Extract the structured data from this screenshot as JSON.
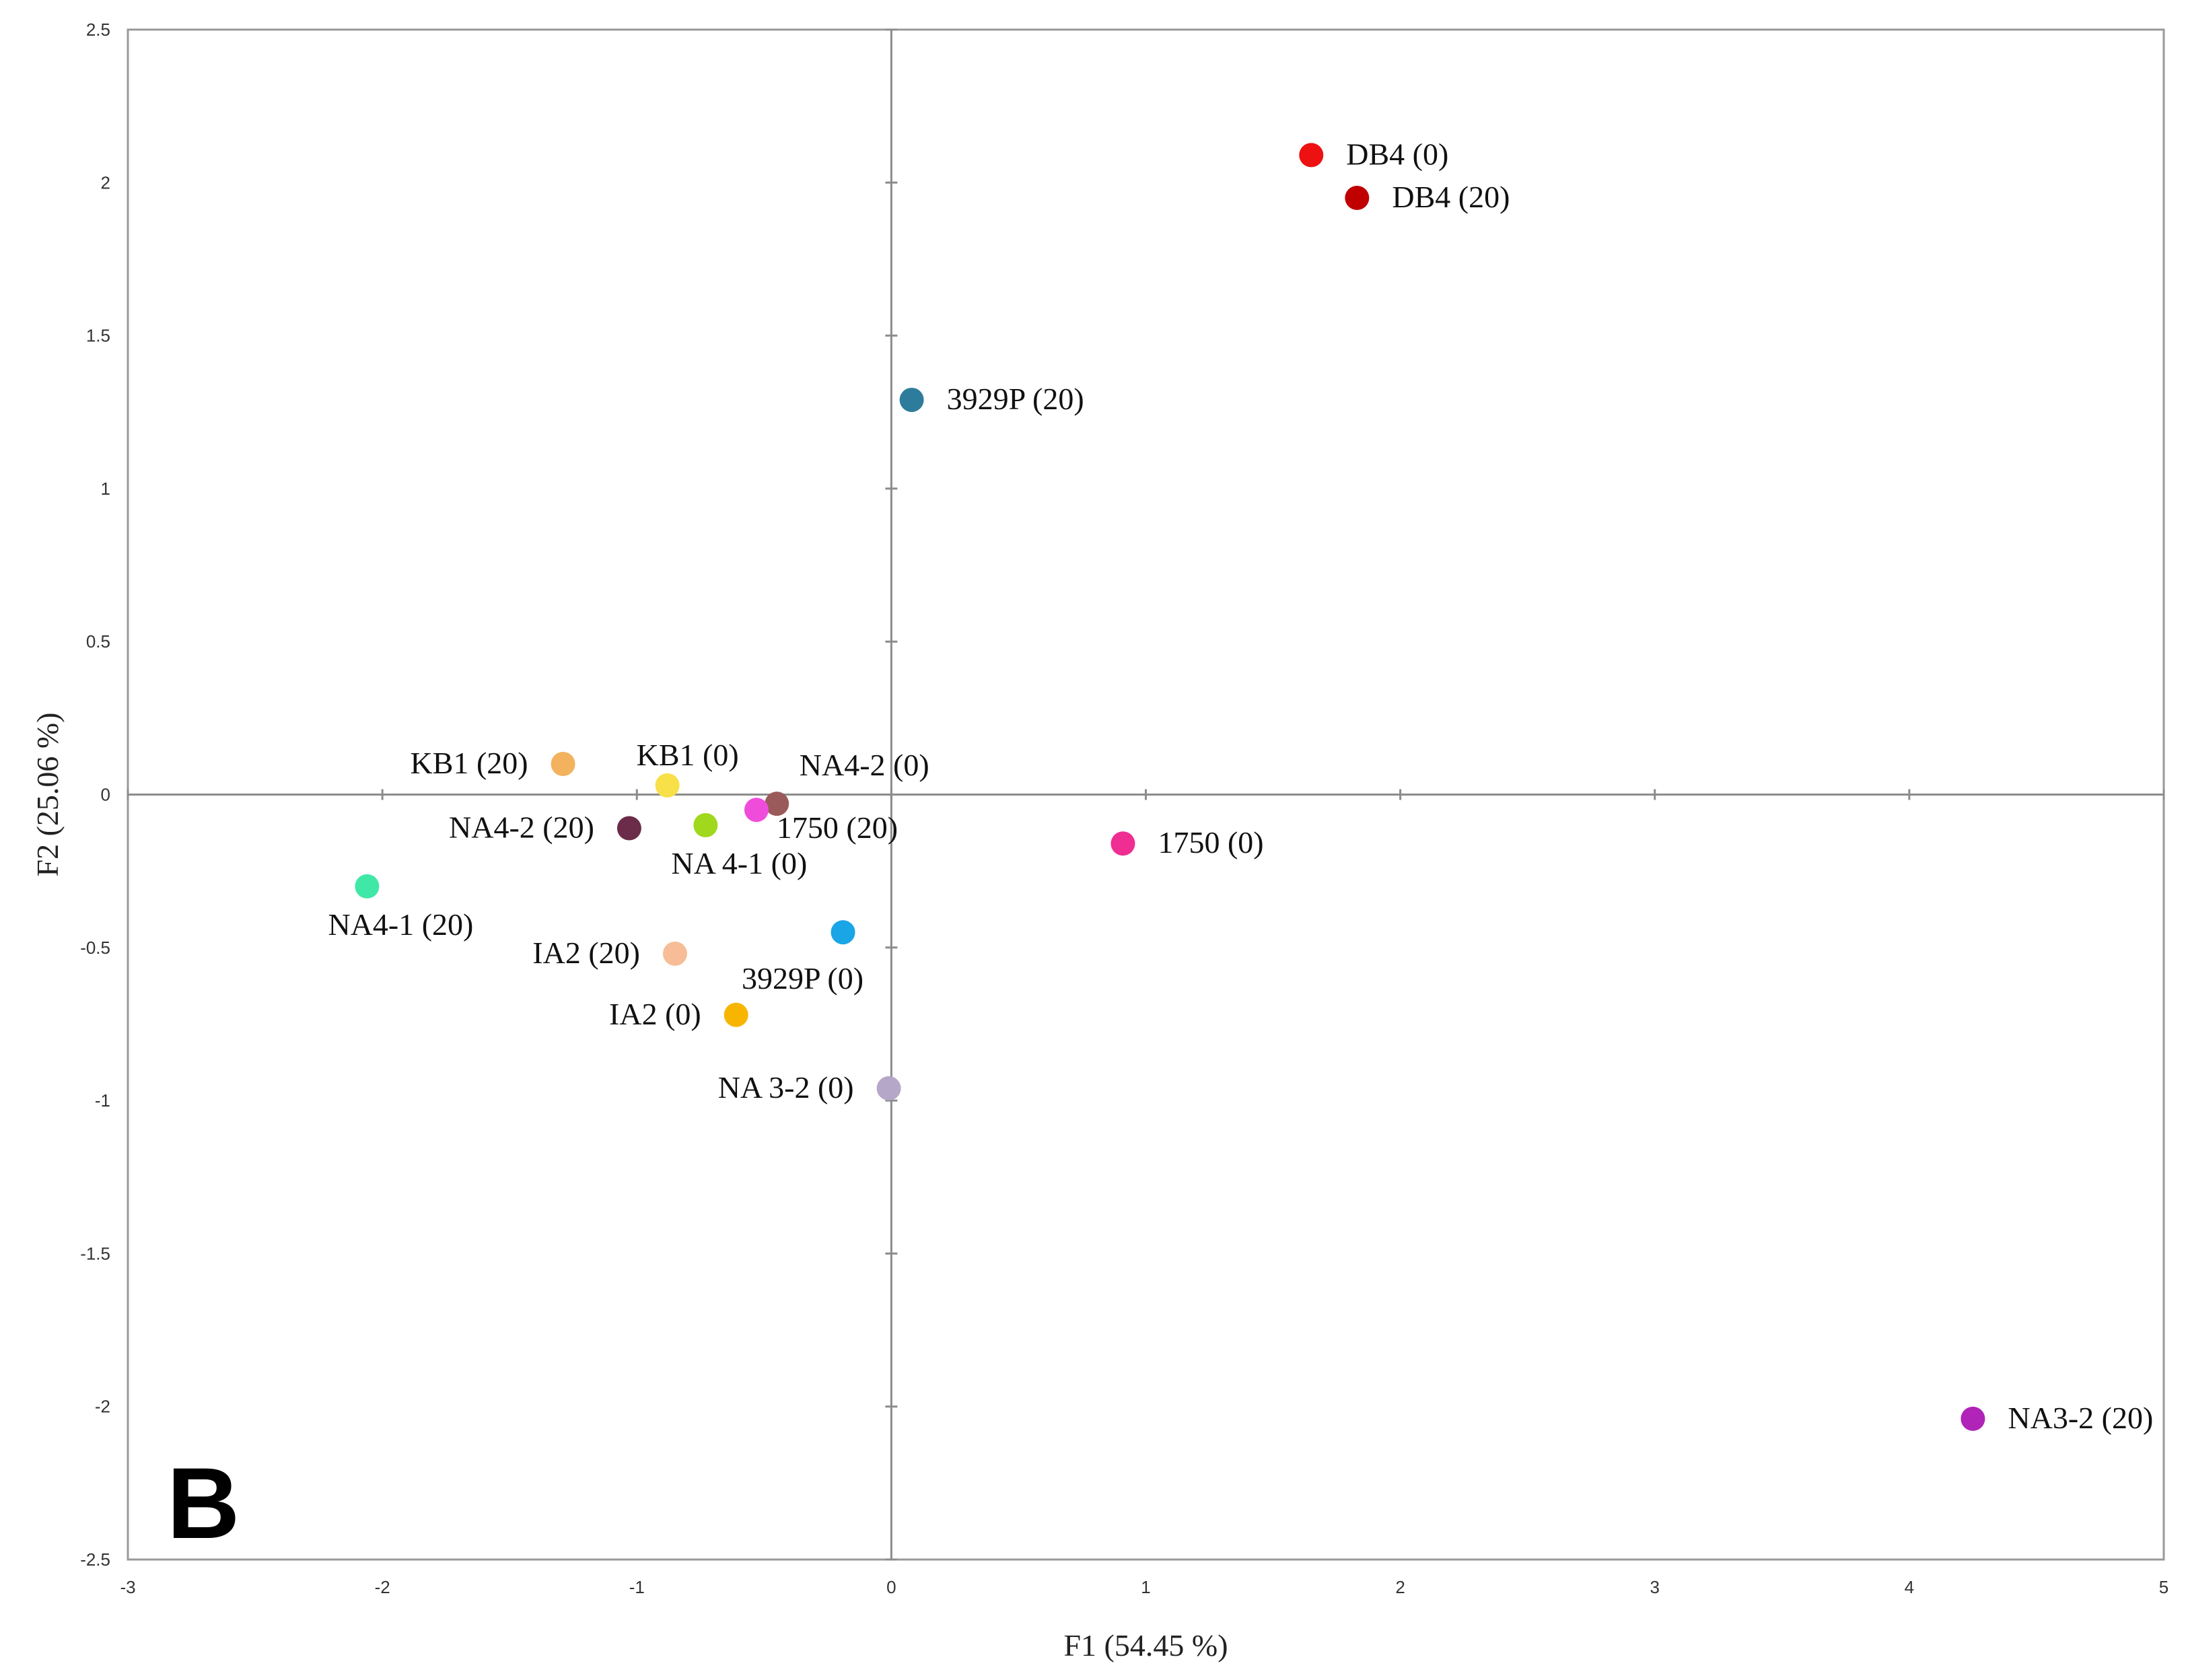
{
  "panel_label": "B",
  "chart_data": {
    "type": "scatter",
    "title": "",
    "xlabel": "F1 (54.45 %)",
    "ylabel": "F2 (25.06 %)",
    "xlim": [
      -3,
      5
    ],
    "ylim": [
      -2.5,
      2.5
    ],
    "xticks": [
      "-3",
      "-2",
      "-1",
      "0",
      "1",
      "2",
      "3",
      "4",
      "5"
    ],
    "yticks": [
      "2.5",
      "2",
      "1.5",
      "1",
      "0.5",
      "0",
      "-0.5",
      "-1",
      "-1.5",
      "-2",
      "-2.5"
    ],
    "grid": false,
    "legend": "none",
    "points": [
      {
        "label": "DB4 (0)",
        "x": 1.65,
        "y": 2.09,
        "color": "#ee1111",
        "anchor": "right"
      },
      {
        "label": "DB4 (20)",
        "x": 1.83,
        "y": 1.95,
        "color": "#c00000",
        "anchor": "right"
      },
      {
        "label": "3929P (20)",
        "x": 0.08,
        "y": 1.29,
        "color": "#2e7c9c",
        "anchor": "right"
      },
      {
        "label": "KB1 (20)",
        "x": -1.29,
        "y": 0.1,
        "color": "#f2b25e",
        "anchor": "left"
      },
      {
        "label": "KB1 (0)",
        "x": -0.88,
        "y": 0.03,
        "color": "#f7e048",
        "anchor": "above"
      },
      {
        "label": "NA4-2 (0)",
        "x": -0.45,
        "y": -0.03,
        "color": "#9b5a5a",
        "anchor": "above-right"
      },
      {
        "label": "1750 (20)",
        "x": -0.53,
        "y": -0.05,
        "color": "#f04cdc",
        "anchor": "below-right"
      },
      {
        "label": "NA4-2 (20)",
        "x": -1.03,
        "y": -0.11,
        "color": "#6b2c49",
        "anchor": "left"
      },
      {
        "label": "NA 4-1 (0)",
        "x": -0.73,
        "y": -0.1,
        "color": "#9fd81c",
        "anchor": "below"
      },
      {
        "label": "1750 (0)",
        "x": 0.91,
        "y": -0.16,
        "color": "#ef2d92",
        "anchor": "right"
      },
      {
        "label": "NA4-1 (20)",
        "x": -2.06,
        "y": -0.3,
        "color": "#3fe8a6",
        "anchor": "below"
      },
      {
        "label": "3929P (0)",
        "x": -0.19,
        "y": -0.45,
        "color": "#1aa5e6",
        "anchor": "below-left"
      },
      {
        "label": "IA2 (20)",
        "x": -0.85,
        "y": -0.52,
        "color": "#f7bd96",
        "anchor": "left"
      },
      {
        "label": "IA2 (0)",
        "x": -0.61,
        "y": -0.72,
        "color": "#f7b500",
        "anchor": "left"
      },
      {
        "label": "NA 3-2 (0)",
        "x": -0.01,
        "y": -0.96,
        "color": "#b5a7c8",
        "anchor": "left"
      },
      {
        "label": "NA3-2 (20)",
        "x": 4.25,
        "y": -2.04,
        "color": "#b024b8",
        "anchor": "right"
      }
    ]
  }
}
